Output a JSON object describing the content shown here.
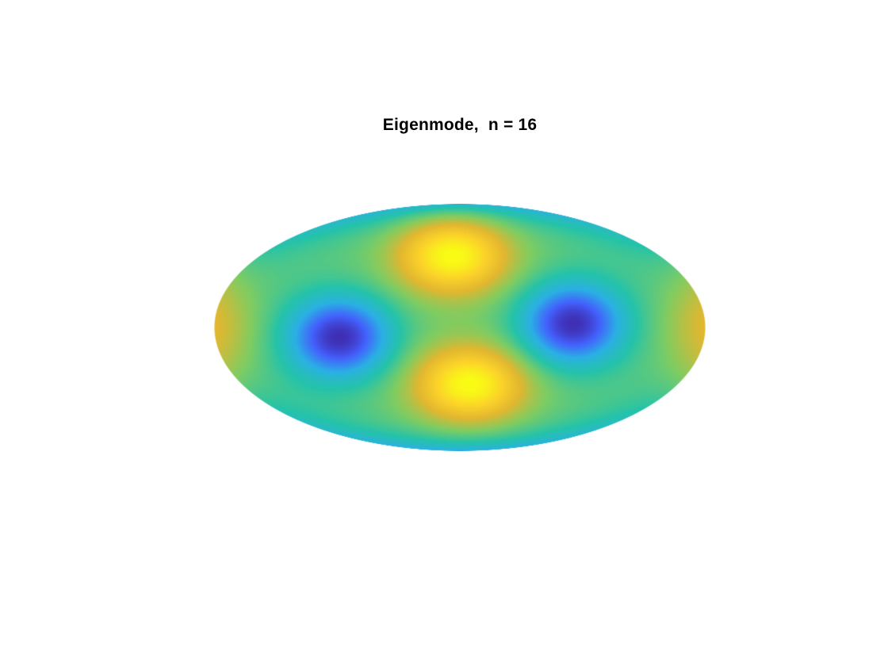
{
  "chart_data": {
    "type": "heatmap",
    "title": "Eigenmode,  n = 16",
    "xlabel": "",
    "ylabel": "",
    "grid": false,
    "legend": "none",
    "axes_visible": false,
    "domain_shape": "ellipse",
    "colormap": "parula",
    "colormap_stops": [
      "#3e26a8",
      "#4361fd",
      "#2ab0e4",
      "#25c3a9",
      "#80cc61",
      "#e2b72f",
      "#fbd22a",
      "#f9fb15"
    ],
    "features": [
      {
        "kind": "maximum",
        "location": "upper-center"
      },
      {
        "kind": "maximum",
        "location": "lower-center"
      },
      {
        "kind": "minimum",
        "location": "left-center"
      },
      {
        "kind": "minimum",
        "location": "right-center"
      },
      {
        "kind": "high",
        "location": "left-edge"
      },
      {
        "kind": "high",
        "location": "right-edge"
      },
      {
        "kind": "low",
        "location": "top-edge"
      },
      {
        "kind": "low",
        "location": "bottom-edge"
      }
    ]
  }
}
